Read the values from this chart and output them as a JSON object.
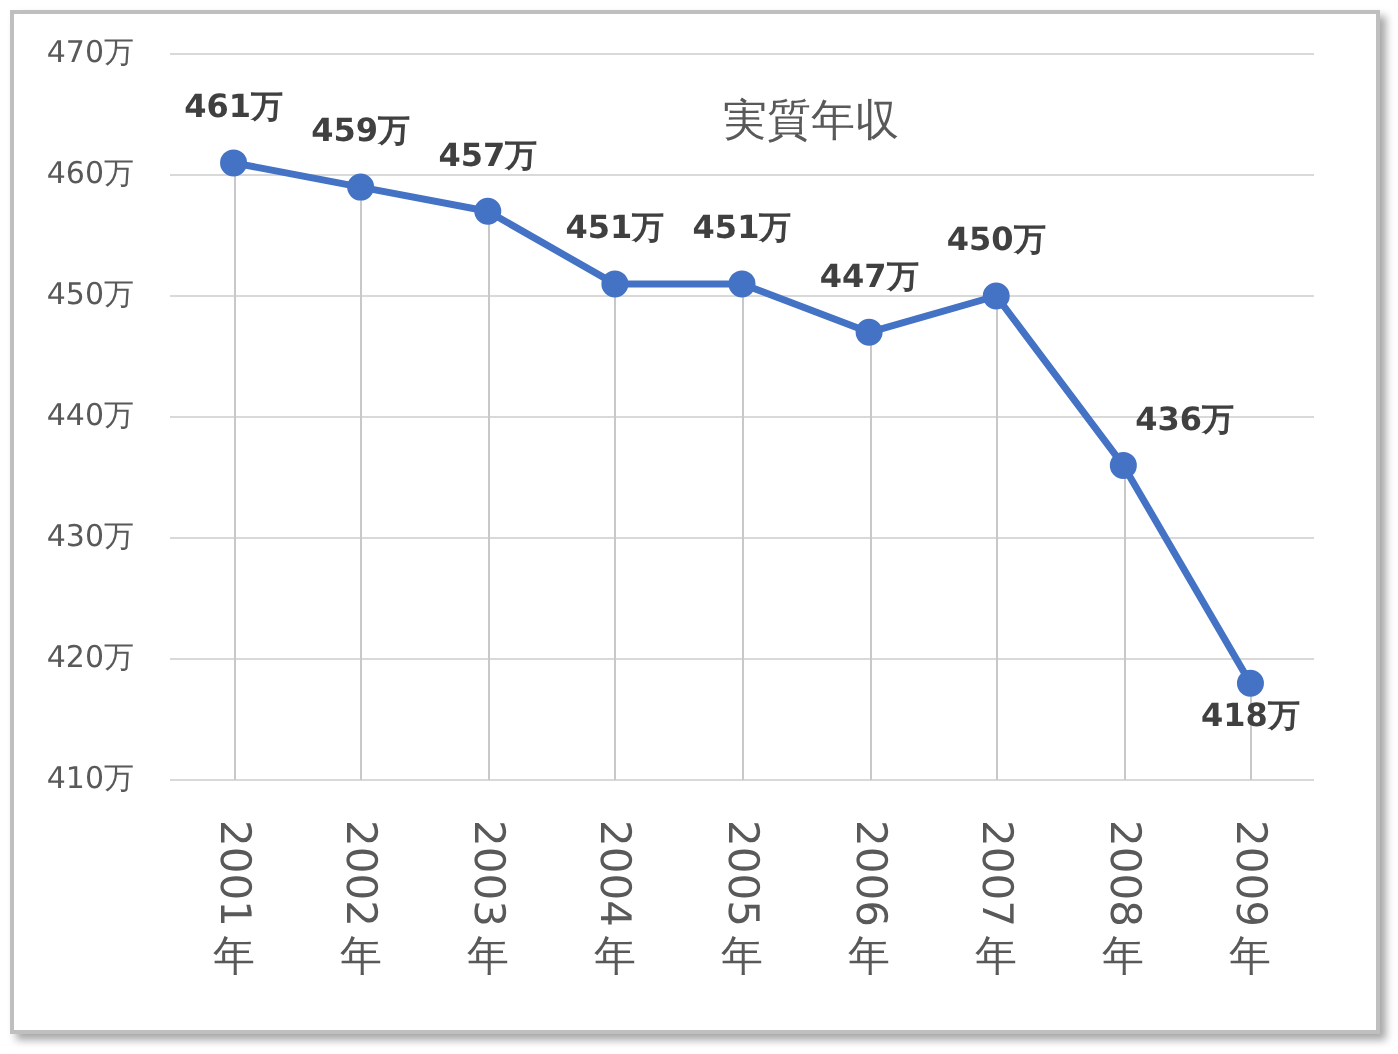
{
  "chart_data": {
    "type": "line",
    "title": "実質年収",
    "categories": [
      "2001年",
      "2002年",
      "2003年",
      "2004年",
      "2005年",
      "2006年",
      "2007年",
      "2008年",
      "2009年"
    ],
    "values": [
      461,
      459,
      457,
      451,
      451,
      447,
      450,
      436,
      418
    ],
    "color": "#4472c4",
    "value_labels": [
      "461万",
      "459万",
      "457万",
      "451万",
      "451万",
      "447万",
      "450万",
      "436万",
      "418万"
    ],
    "ylim": [
      410,
      470
    ],
    "yticks": [
      {
        "value": 410,
        "label": "410万"
      },
      {
        "value": 420,
        "label": "420万"
      },
      {
        "value": 430,
        "label": "430万"
      },
      {
        "value": 440,
        "label": "440万"
      },
      {
        "value": 450,
        "label": "450万"
      },
      {
        "value": 460,
        "label": "460万"
      },
      {
        "value": 470,
        "label": "470万"
      }
    ],
    "grid": true,
    "marker": "circle",
    "line_style": "solid"
  }
}
